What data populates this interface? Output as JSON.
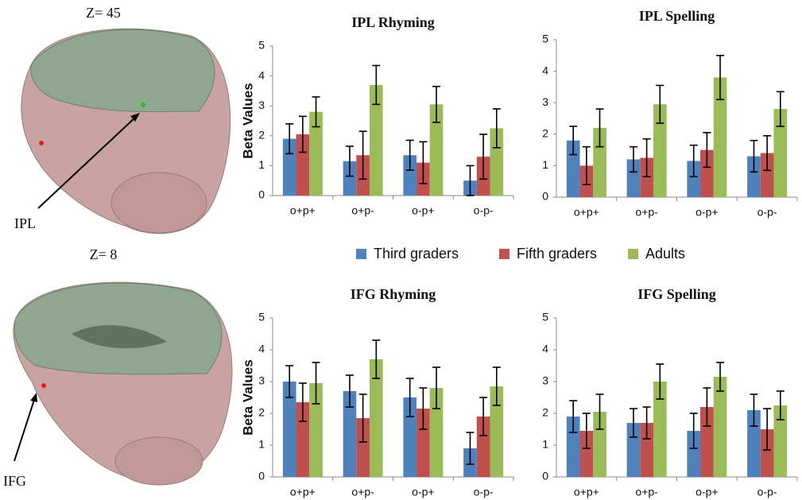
{
  "brain_panels": [
    {
      "slice": "Z= 45",
      "region": "IPL"
    },
    {
      "slice": "Z= 8",
      "region": "IFG"
    }
  ],
  "chart_data": [
    {
      "type": "bar",
      "title": "IPL Rhyming",
      "ylabel": "Beta Values",
      "categories": [
        "o+p+",
        "o+p-",
        "o-p+",
        "o-p-"
      ],
      "ylim": [
        0,
        5
      ],
      "yticks": [
        0,
        1,
        2,
        3,
        4,
        5
      ],
      "series": [
        {
          "name": "Third graders",
          "color": "#4f81bd",
          "values": [
            1.9,
            1.15,
            1.35,
            0.5
          ],
          "errors": [
            0.5,
            0.5,
            0.5,
            0.5
          ]
        },
        {
          "name": "Fifth graders",
          "color": "#c0504d",
          "values": [
            2.05,
            1.35,
            1.1,
            1.3
          ],
          "errors": [
            0.6,
            0.8,
            0.7,
            0.75
          ]
        },
        {
          "name": "Adults",
          "color": "#9bbb59",
          "values": [
            2.8,
            3.7,
            3.05,
            2.25
          ],
          "errors": [
            0.5,
            0.65,
            0.6,
            0.65
          ]
        }
      ]
    },
    {
      "type": "bar",
      "title": "IPL Spelling",
      "categories": [
        "o+p+",
        "o+p-",
        "o-p+",
        "o-p-"
      ],
      "ylim": [
        0,
        5
      ],
      "yticks": [
        0,
        1,
        2,
        3,
        4,
        5
      ],
      "series": [
        {
          "color": "#4f81bd",
          "values": [
            1.8,
            1.2,
            1.15,
            1.3
          ],
          "errors": [
            0.45,
            0.4,
            0.5,
            0.5
          ]
        },
        {
          "color": "#c0504d",
          "values": [
            1.0,
            1.25,
            1.5,
            1.4
          ],
          "errors": [
            0.6,
            0.6,
            0.55,
            0.55
          ]
        },
        {
          "color": "#9bbb59",
          "values": [
            2.2,
            2.95,
            3.8,
            2.8
          ],
          "errors": [
            0.6,
            0.6,
            0.7,
            0.55
          ]
        }
      ]
    },
    {
      "type": "bar",
      "title": "IFG Rhyming",
      "ylabel": "Beta Values",
      "categories": [
        "o+p+",
        "o+p-",
        "o-p+",
        "o-p-"
      ],
      "ylim": [
        0,
        5
      ],
      "yticks": [
        0,
        1,
        2,
        3,
        4,
        5
      ],
      "series": [
        {
          "color": "#4f81bd",
          "values": [
            3.0,
            2.7,
            2.5,
            0.9
          ],
          "errors": [
            0.5,
            0.5,
            0.6,
            0.5
          ]
        },
        {
          "color": "#c0504d",
          "values": [
            2.35,
            1.85,
            2.15,
            1.9
          ],
          "errors": [
            0.6,
            0.75,
            0.65,
            0.6
          ]
        },
        {
          "color": "#9bbb59",
          "values": [
            2.95,
            3.7,
            2.8,
            2.85
          ],
          "errors": [
            0.65,
            0.6,
            0.65,
            0.6
          ]
        }
      ]
    },
    {
      "type": "bar",
      "title": "IFG Spelling",
      "categories": [
        "o+p+",
        "o+p-",
        "o-p+",
        "o-p-"
      ],
      "ylim": [
        0,
        5
      ],
      "yticks": [
        0,
        1,
        2,
        3,
        4,
        5
      ],
      "series": [
        {
          "color": "#4f81bd",
          "values": [
            1.9,
            1.7,
            1.45,
            2.1
          ],
          "errors": [
            0.5,
            0.45,
            0.55,
            0.5
          ]
        },
        {
          "color": "#c0504d",
          "values": [
            1.45,
            1.7,
            2.2,
            1.5
          ],
          "errors": [
            0.55,
            0.5,
            0.6,
            0.65
          ]
        },
        {
          "color": "#9bbb59",
          "values": [
            2.05,
            3.0,
            3.15,
            2.25
          ],
          "errors": [
            0.55,
            0.55,
            0.45,
            0.45
          ]
        }
      ]
    }
  ]
}
